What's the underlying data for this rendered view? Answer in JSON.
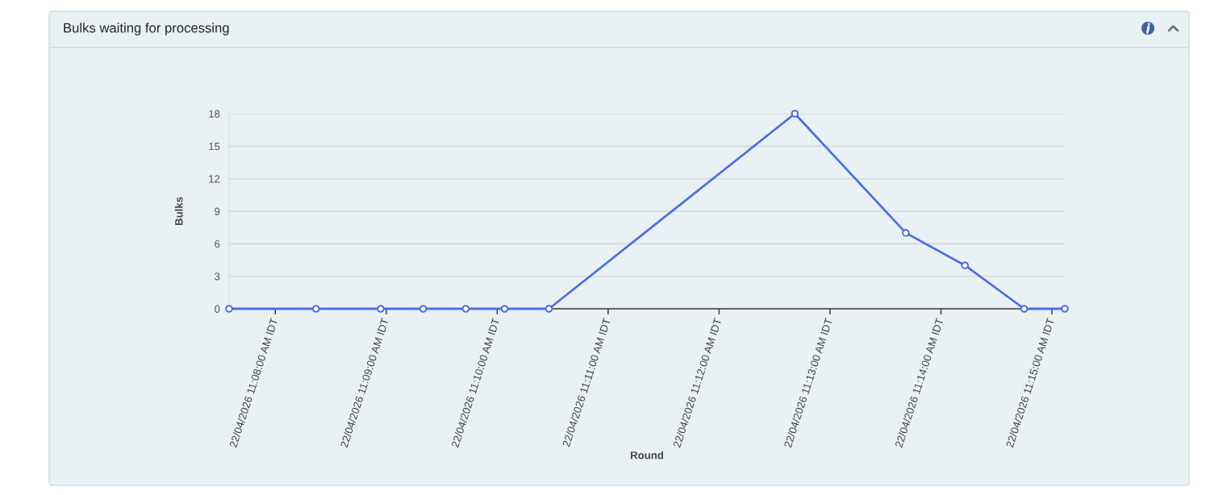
{
  "chart_data": {
    "type": "line",
    "title": "Bulks waiting for processing",
    "xlabel": "Round",
    "ylabel": "Bulks",
    "x": [
      "2026-04-22T11:07:35",
      "2026-04-22T11:08:22",
      "2026-04-22T11:08:57",
      "2026-04-22T11:09:20",
      "2026-04-22T11:09:43",
      "2026-04-22T11:10:04",
      "2026-04-22T11:10:28",
      "2026-04-22T11:12:41",
      "2026-04-22T11:13:41",
      "2026-04-22T11:14:13",
      "2026-04-22T11:14:45",
      "2026-04-22T11:15:07"
    ],
    "series": [
      {
        "color": "#4b6fe3",
        "values": [
          0,
          0,
          0,
          0,
          0,
          0,
          0,
          18,
          7,
          4,
          0,
          0
        ]
      }
    ],
    "xlim": [
      "2026-04-22T11:07:35",
      "2026-04-22T11:15:07"
    ],
    "xticks": [
      {
        "value": "2026-04-22T11:08",
        "label": "22/04/2026 11:08:00 AM IDT"
      },
      {
        "value": "2026-04-22T11:09",
        "label": "22/04/2026 11:09:00 AM IDT"
      },
      {
        "value": "2026-04-22T11:10",
        "label": "22/04/2026 11:10:00 AM IDT"
      },
      {
        "value": "2026-04-22T11:11",
        "label": "22/04/2026 11:11:00 AM IDT"
      },
      {
        "value": "2026-04-22T11:12",
        "label": "22/04/2026 11:12:00 AM IDT"
      },
      {
        "value": "2026-04-22T11:13",
        "label": "22/04/2026 11:13:00 AM IDT"
      },
      {
        "value": "2026-04-22T11:14",
        "label": "22/04/2026 11:14:00 AM IDT"
      },
      {
        "value": "2026-04-22T11:15",
        "label": "22/04/2026 11:15:00 AM IDT"
      }
    ],
    "ylim": [
      0,
      18
    ],
    "yticks": [
      0,
      3,
      6,
      9,
      12,
      15,
      18
    ],
    "grid": "y",
    "marker": "circle",
    "line_style": "solid"
  }
}
